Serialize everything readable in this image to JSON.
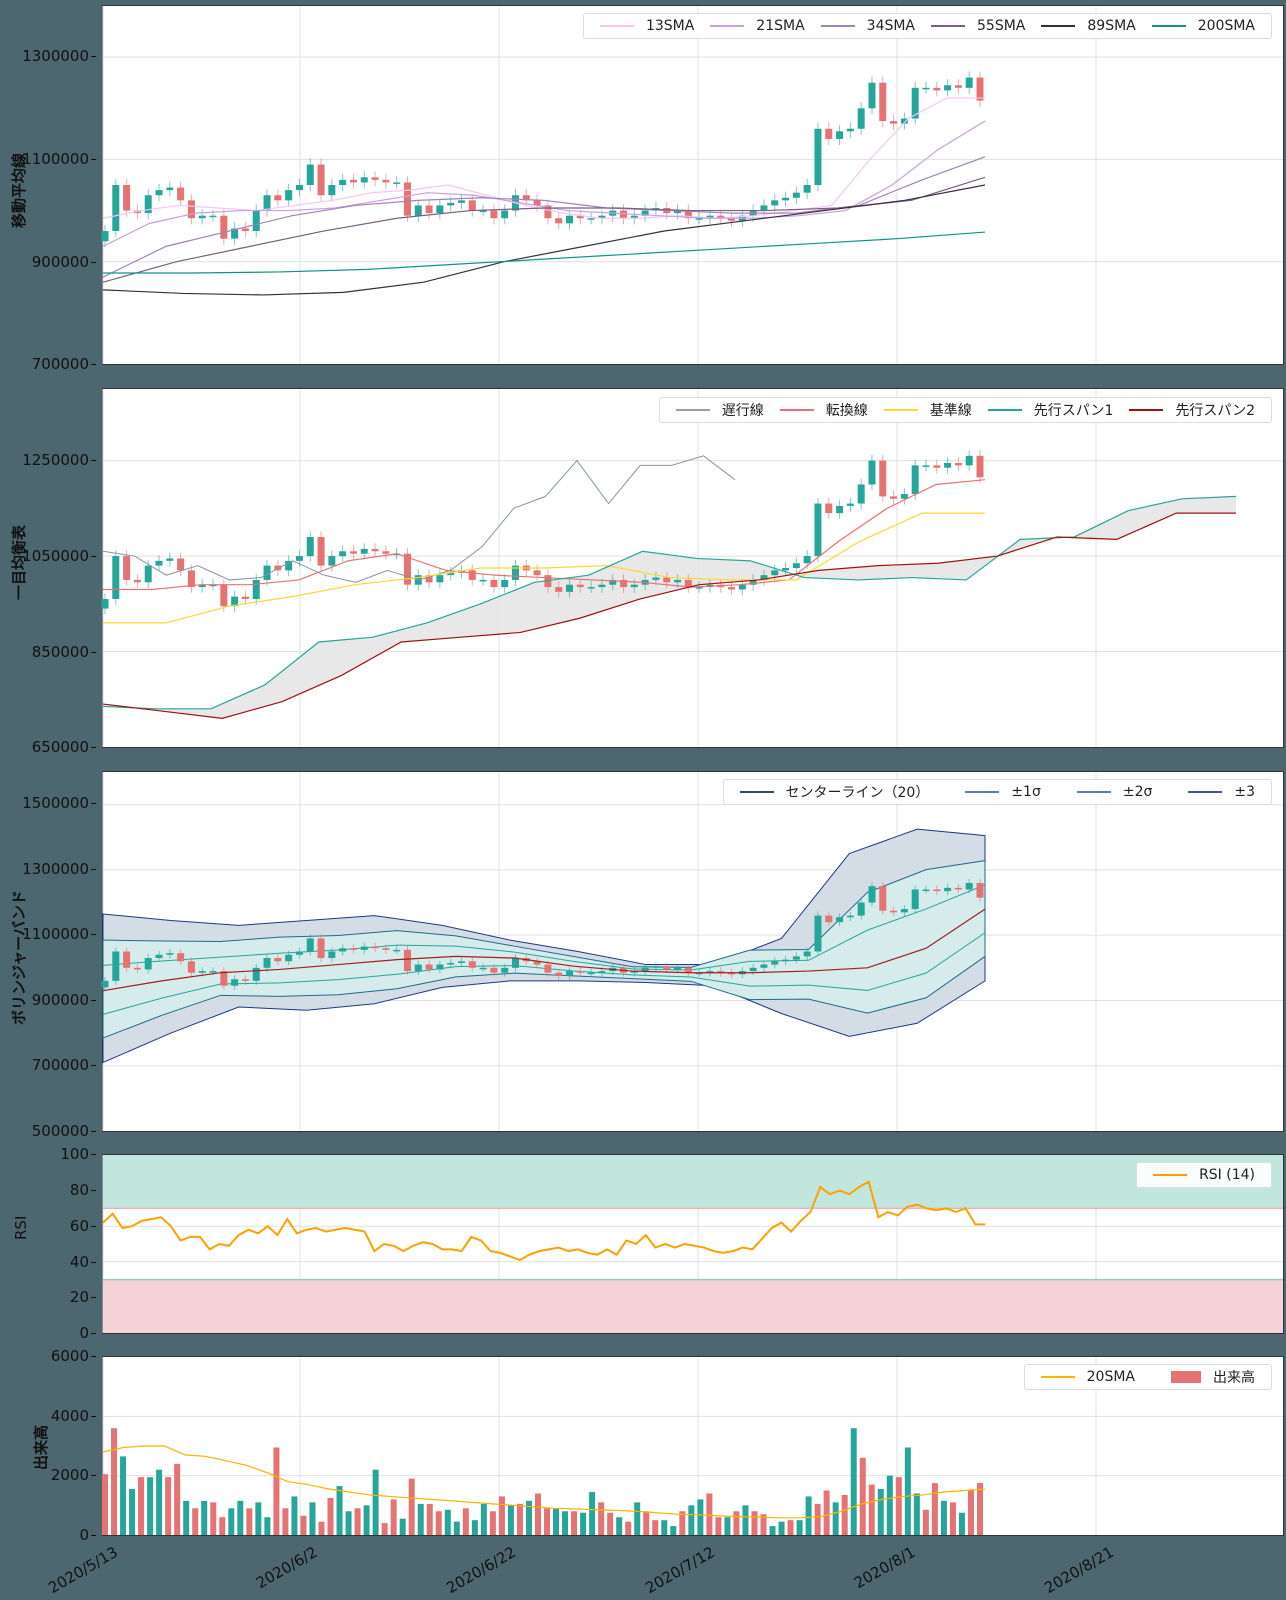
{
  "colors": {
    "background": "#4d6770",
    "up": "#26a69a",
    "down": "#e57373",
    "grid": "#dddddd",
    "sma13": "#f5c6f5",
    "sma21": "#c9a0dc",
    "sma34": "#a085b5",
    "sma55": "#7a5f80",
    "sma89": "#3d2b40",
    "sma200": "#0d9488",
    "chikou": "#8a94a0",
    "tenkan": "#e57373",
    "kijun": "#fdd835",
    "senkou1": "#26a69a",
    "senkou2": "#a01010",
    "kumo": "#e5e5e5",
    "bb_center": "#a02020",
    "bb1": "#26a69a",
    "bb2": "#1f6b8a",
    "bb3": "#1a3a80",
    "rsi": "#ffa000",
    "rsi_over": "#c1e6de",
    "rsi_under": "#f4d2d8",
    "vol_sma": "#ffb300"
  },
  "panels": [
    {
      "id": "sma",
      "ylabel": "移動平均線",
      "yticks": [
        "1300000",
        "1100000",
        "900000",
        "700000"
      ],
      "legend": [
        "13SMA",
        "21SMA",
        "34SMA",
        "55SMA",
        "89SMA",
        "200SMA"
      ]
    },
    {
      "id": "ichimoku",
      "ylabel": "一目均衡表",
      "yticks": [
        "1250000",
        "1050000",
        "850000",
        "650000"
      ],
      "legend": [
        "遅行線",
        "転換線",
        "基準線",
        "先行スパン1",
        "先行スパン2"
      ]
    },
    {
      "id": "bollinger",
      "ylabel": "ボリンジャーバンド",
      "yticks": [
        "1500000",
        "1300000",
        "1100000",
        "900000",
        "700000",
        "500000"
      ],
      "legend": [
        "センターライン（20）",
        "±1σ",
        "±2σ",
        "±3"
      ]
    },
    {
      "id": "rsi",
      "ylabel": "RSI",
      "yticks": [
        "100",
        "80",
        "60",
        "40",
        "20",
        "0"
      ],
      "legend": [
        "RSI (14)"
      ]
    },
    {
      "id": "volume",
      "ylabel": "出来高",
      "yticks": [
        "6000",
        "4000",
        "2000",
        "0"
      ],
      "legend": [
        "20SMA",
        "出来高"
      ]
    }
  ],
  "xticks": [
    "2020/5/13",
    "2020/6/2",
    "2020/6/22",
    "2020/7/12",
    "2020/8/1",
    "2020/8/21"
  ],
  "chart_data": [
    {
      "type": "candlestick+line",
      "title": "移動平均線",
      "ylabel": "移動平均線",
      "ylim": [
        700000,
        1400000
      ],
      "x_range": [
        "2020/5/13",
        "2020/9/8"
      ],
      "xticks": [
        "2020/5/13",
        "2020/6/2",
        "2020/6/22",
        "2020/7/12",
        "2020/8/1",
        "2020/8/21"
      ],
      "ohlc_close_approx": [
        960000,
        1050000,
        1000000,
        995000,
        1030000,
        1040000,
        1045000,
        1020000,
        985000,
        990000,
        990000,
        945000,
        965000,
        960000,
        1000000,
        1030000,
        1020000,
        1040000,
        1050000,
        1090000,
        1030000,
        1050000,
        1060000,
        1055000,
        1065000,
        1060000,
        1055000,
        1055000,
        990000,
        1010000,
        995000,
        1010000,
        1015000,
        1020000,
        1000000,
        1000000,
        985000,
        1000000,
        1030000,
        1020000,
        1010000,
        985000,
        975000,
        990000,
        985000,
        985000,
        990000,
        1000000,
        985000,
        990000,
        1000000,
        1005000,
        995000,
        1000000,
        985000,
        985000,
        990000,
        985000,
        980000,
        990000,
        1000000,
        1010000,
        1020000,
        1025000,
        1035000,
        1050000,
        1160000,
        1140000,
        1155000,
        1160000,
        1200000,
        1250000,
        1175000,
        1170000,
        1180000,
        1240000,
        1240000,
        1235000,
        1245000,
        1240000,
        1260000,
        1215000
      ],
      "series": [
        {
          "name": "13SMA",
          "values_approx": [
            985000,
            1000000,
            1010000,
            1005000,
            1000000,
            1010000,
            1020000,
            1035000,
            1040000,
            1050000,
            1030000,
            1010000,
            995000,
            985000,
            985000,
            990000,
            985000,
            990000,
            1000000,
            1010000,
            1100000,
            1180000,
            1220000,
            1220000
          ]
        },
        {
          "name": "21SMA",
          "values_approx": [
            930000,
            975000,
            995000,
            1000000,
            1000000,
            1005000,
            1020000,
            1035000,
            1030000,
            1015000,
            1000000,
            995000,
            990000,
            985000,
            985000,
            990000,
            1000000,
            1050000,
            1120000,
            1175000
          ]
        },
        {
          "name": "34SMA",
          "values_approx": [
            870000,
            930000,
            960000,
            990000,
            1010000,
            1020000,
            1025000,
            1020000,
            1005000,
            1000000,
            995000,
            995000,
            1010000,
            1060000,
            1105000
          ]
        },
        {
          "name": "55SMA",
          "values_approx": [
            860000,
            900000,
            930000,
            960000,
            985000,
            1000000,
            1005000,
            1005000,
            1000000,
            1000000,
            1005000,
            1020000,
            1065000
          ]
        },
        {
          "name": "89SMA",
          "values_approx": [
            845000,
            838000,
            835000,
            840000,
            860000,
            900000,
            930000,
            960000,
            980000,
            1000000,
            1020000,
            1050000
          ]
        },
        {
          "name": "200SMA",
          "values_approx": [
            878000,
            878000,
            880000,
            885000,
            895000,
            905000,
            915000,
            925000,
            935000,
            945000,
            958000
          ]
        }
      ]
    },
    {
      "type": "ichimoku",
      "title": "一目均衡表",
      "ylabel": "一目均衡表",
      "ylim": [
        650000,
        1400000
      ],
      "series": [
        {
          "name": "遅行線",
          "values_approx": [
            1060000,
            1050000,
            1010000,
            1030000,
            1000000,
            1005000,
            1040000,
            1010000,
            995000,
            1020000,
            1000000,
            1020000,
            1070000,
            1150000,
            1175000,
            1250000,
            1160000,
            1240000,
            1240000,
            1260000,
            1210000
          ]
        },
        {
          "name": "転換線",
          "values_approx": [
            980000,
            980000,
            990000,
            990000,
            1000000,
            1040000,
            1055000,
            1020000,
            1010000,
            1005000,
            1000000,
            995000,
            985000,
            990000,
            1000000,
            1080000,
            1150000,
            1200000,
            1210000
          ]
        },
        {
          "name": "基準線",
          "values_approx": [
            910000,
            910000,
            945000,
            965000,
            990000,
            1005000,
            1025000,
            1025000,
            1030000,
            1005000,
            1000000,
            1000000,
            1080000,
            1140000,
            1140000
          ]
        },
        {
          "name": "先行スパン1",
          "values_approx": [
            735000,
            730000,
            730000,
            780000,
            870000,
            880000,
            910000,
            950000,
            995000,
            1010000,
            1060000,
            1045000,
            1040000,
            1005000,
            1000000,
            1005000,
            1000000,
            1085000,
            1090000,
            1145000,
            1170000,
            1175000
          ]
        },
        {
          "name": "先行スパン2",
          "values_approx": [
            740000,
            725000,
            710000,
            745000,
            800000,
            870000,
            880000,
            890000,
            920000,
            960000,
            990000,
            1000000,
            1020000,
            1030000,
            1035000,
            1050000,
            1090000,
            1085000,
            1140000,
            1140000
          ]
        }
      ]
    },
    {
      "type": "bollinger",
      "title": "ボリンジャーバンド",
      "ylabel": "ボリンジャーバンド",
      "ylim": [
        500000,
        1600000
      ],
      "series": [
        {
          "name": "センターライン（20）",
          "values_approx": [
            930000,
            960000,
            985000,
            995000,
            1010000,
            1025000,
            1035000,
            1030000,
            1005000,
            990000,
            985000,
            985000,
            990000,
            1000000,
            1060000,
            1180000
          ]
        },
        {
          "name": "+3σ",
          "values_approx": [
            1165000,
            1145000,
            1130000,
            1145000,
            1160000,
            1130000,
            1085000,
            1050000,
            1010000,
            1010000,
            1090000,
            1350000,
            1425000,
            1405000
          ]
        },
        {
          "name": "-3σ",
          "values_approx": [
            710000,
            800000,
            880000,
            870000,
            890000,
            940000,
            960000,
            960000,
            955000,
            945000,
            860000,
            790000,
            830000,
            960000
          ]
        }
      ]
    },
    {
      "type": "line",
      "title": "RSI",
      "ylabel": "RSI",
      "ylim": [
        0,
        100
      ],
      "bands": {
        "overbought": [
          70,
          100
        ],
        "oversold": [
          0,
          30
        ]
      },
      "series": [
        {
          "name": "RSI (14)",
          "values_approx": [
            62,
            67,
            59,
            60,
            63,
            64,
            65,
            60,
            52,
            54,
            54,
            47,
            50,
            49,
            55,
            58,
            56,
            60,
            55,
            64,
            56,
            58,
            59,
            57,
            58,
            59,
            58,
            57,
            46,
            50,
            49,
            46,
            49,
            51,
            50,
            47,
            47,
            46,
            54,
            52,
            46,
            45,
            43,
            41,
            44,
            46,
            47,
            48,
            46,
            47,
            45,
            44,
            47,
            44,
            52,
            50,
            55,
            48,
            50,
            48,
            50,
            49,
            48,
            46,
            45,
            46,
            48,
            47,
            53,
            59,
            62,
            57,
            63,
            68,
            82,
            78,
            80,
            78,
            82,
            85,
            65,
            68,
            66,
            71,
            72,
            70,
            69,
            70,
            68,
            70,
            61,
            61
          ]
        }
      ]
    },
    {
      "type": "bar+line",
      "title": "出来高",
      "ylabel": "出来高",
      "ylim": [
        0,
        6000
      ],
      "series": [
        {
          "name": "出来高",
          "values_approx": [
            2050,
            3600,
            2650,
            1550,
            1950,
            1950,
            2200,
            1950,
            2400,
            1150,
            900,
            1150,
            1100,
            600,
            900,
            1150,
            900,
            1100,
            600,
            2950,
            900,
            1300,
            650,
            1100,
            450,
            1250,
            1650,
            800,
            900,
            1000,
            2200,
            400,
            1200,
            550,
            1900,
            1050,
            1050,
            800,
            850,
            450,
            900,
            500,
            1050,
            800,
            1300,
            1000,
            1050,
            1150,
            1400,
            900,
            900,
            800,
            800,
            750,
            1450,
            1100,
            750,
            600,
            450,
            1100,
            800,
            500,
            500,
            300,
            800,
            1000,
            1200,
            1400,
            600,
            600,
            800,
            1000,
            800,
            700,
            300,
            450,
            500,
            500,
            1300,
            1050,
            1500,
            1100,
            1350,
            3600,
            2600,
            1700,
            1550,
            2000,
            1950,
            2950,
            1400,
            850,
            1750,
            1150,
            1100,
            750,
            1500,
            1750
          ]
        },
        {
          "name": "20SMA",
          "values_approx": [
            2800,
            2950,
            3000,
            3000,
            2700,
            2650,
            2500,
            2350,
            2100,
            1800,
            1700,
            1550,
            1450,
            1350,
            1300,
            1250,
            1200,
            1150,
            1100,
            1050,
            1000,
            950,
            900,
            880,
            850,
            830,
            800,
            750,
            700,
            680,
            650,
            620,
            600,
            580,
            580,
            620,
            800,
            1050,
            1200,
            1300,
            1350,
            1450,
            1500,
            1550
          ]
        }
      ]
    }
  ]
}
